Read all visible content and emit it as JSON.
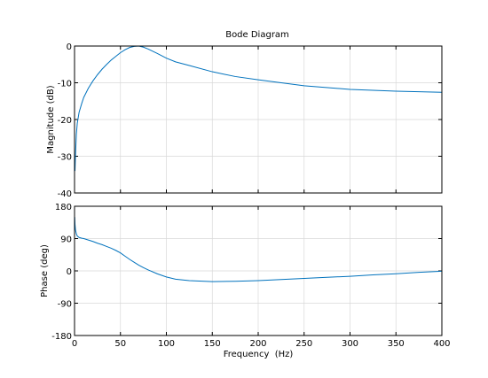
{
  "title": "Bode Diagram",
  "chart_data": [
    {
      "type": "line",
      "panel": "magnitude",
      "title": "Bode Diagram",
      "xlabel": "",
      "ylabel": "Magnitude (dB)",
      "xlim": [
        0,
        400
      ],
      "ylim": [
        -40,
        0
      ],
      "xticks": [
        0,
        50,
        100,
        150,
        200,
        250,
        300,
        350,
        400
      ],
      "yticks": [
        -40,
        -30,
        -20,
        -10,
        0
      ],
      "ytick_labels": [
        "-40",
        "-30",
        "-20",
        "-10",
        "0"
      ],
      "grid": true,
      "color": "#0072bd",
      "series": [
        {
          "x": [
            0.5,
            1,
            2,
            3,
            5,
            8,
            10,
            15,
            20,
            25,
            30,
            35,
            40,
            45,
            50,
            55,
            60,
            65,
            70,
            75,
            80,
            90,
            100,
            110,
            125,
            150,
            175,
            200,
            250,
            300,
            350,
            400
          ],
          "values": [
            -34,
            -30,
            -24,
            -21,
            -18,
            -15.5,
            -14,
            -11.5,
            -9.5,
            -7.8,
            -6.3,
            -5,
            -3.8,
            -2.8,
            -1.8,
            -1,
            -0.4,
            -0.1,
            0,
            -0.3,
            -0.8,
            -2,
            -3.3,
            -4.3,
            -5.3,
            -7,
            -8.3,
            -9.2,
            -10.8,
            -11.8,
            -12.3,
            -12.6
          ]
        }
      ]
    },
    {
      "type": "line",
      "panel": "phase",
      "title": "",
      "xlabel": "Frequency  (Hz)",
      "ylabel": "Phase (deg)",
      "xlim": [
        0,
        400
      ],
      "ylim": [
        -180,
        180
      ],
      "xticks": [
        0,
        50,
        100,
        150,
        200,
        250,
        300,
        350,
        400
      ],
      "xtick_labels": [
        "0",
        "50",
        "100",
        "150",
        "200",
        "250",
        "300",
        "350",
        "400"
      ],
      "yticks": [
        -180,
        -90,
        0,
        90,
        180
      ],
      "ytick_labels": [
        "-180",
        "-90",
        "0",
        "90",
        "180"
      ],
      "grid": true,
      "color": "#0072bd",
      "series": [
        {
          "x": [
            0.2,
            0.5,
            1,
            2,
            3,
            5,
            8,
            10,
            15,
            20,
            25,
            30,
            35,
            40,
            45,
            50,
            55,
            60,
            65,
            70,
            75,
            80,
            90,
            100,
            110,
            125,
            150,
            175,
            200,
            225,
            250,
            275,
            300,
            325,
            350,
            375,
            400
          ],
          "values": [
            150,
            130,
            115,
            103,
            97,
            93,
            91,
            90,
            86,
            82,
            77,
            73,
            68,
            63,
            57,
            50,
            41,
            32,
            24,
            16,
            9,
            3,
            -8,
            -17,
            -23,
            -27,
            -30,
            -29,
            -27,
            -24,
            -21,
            -18,
            -15,
            -11,
            -8,
            -4,
            -1
          ]
        }
      ]
    }
  ]
}
